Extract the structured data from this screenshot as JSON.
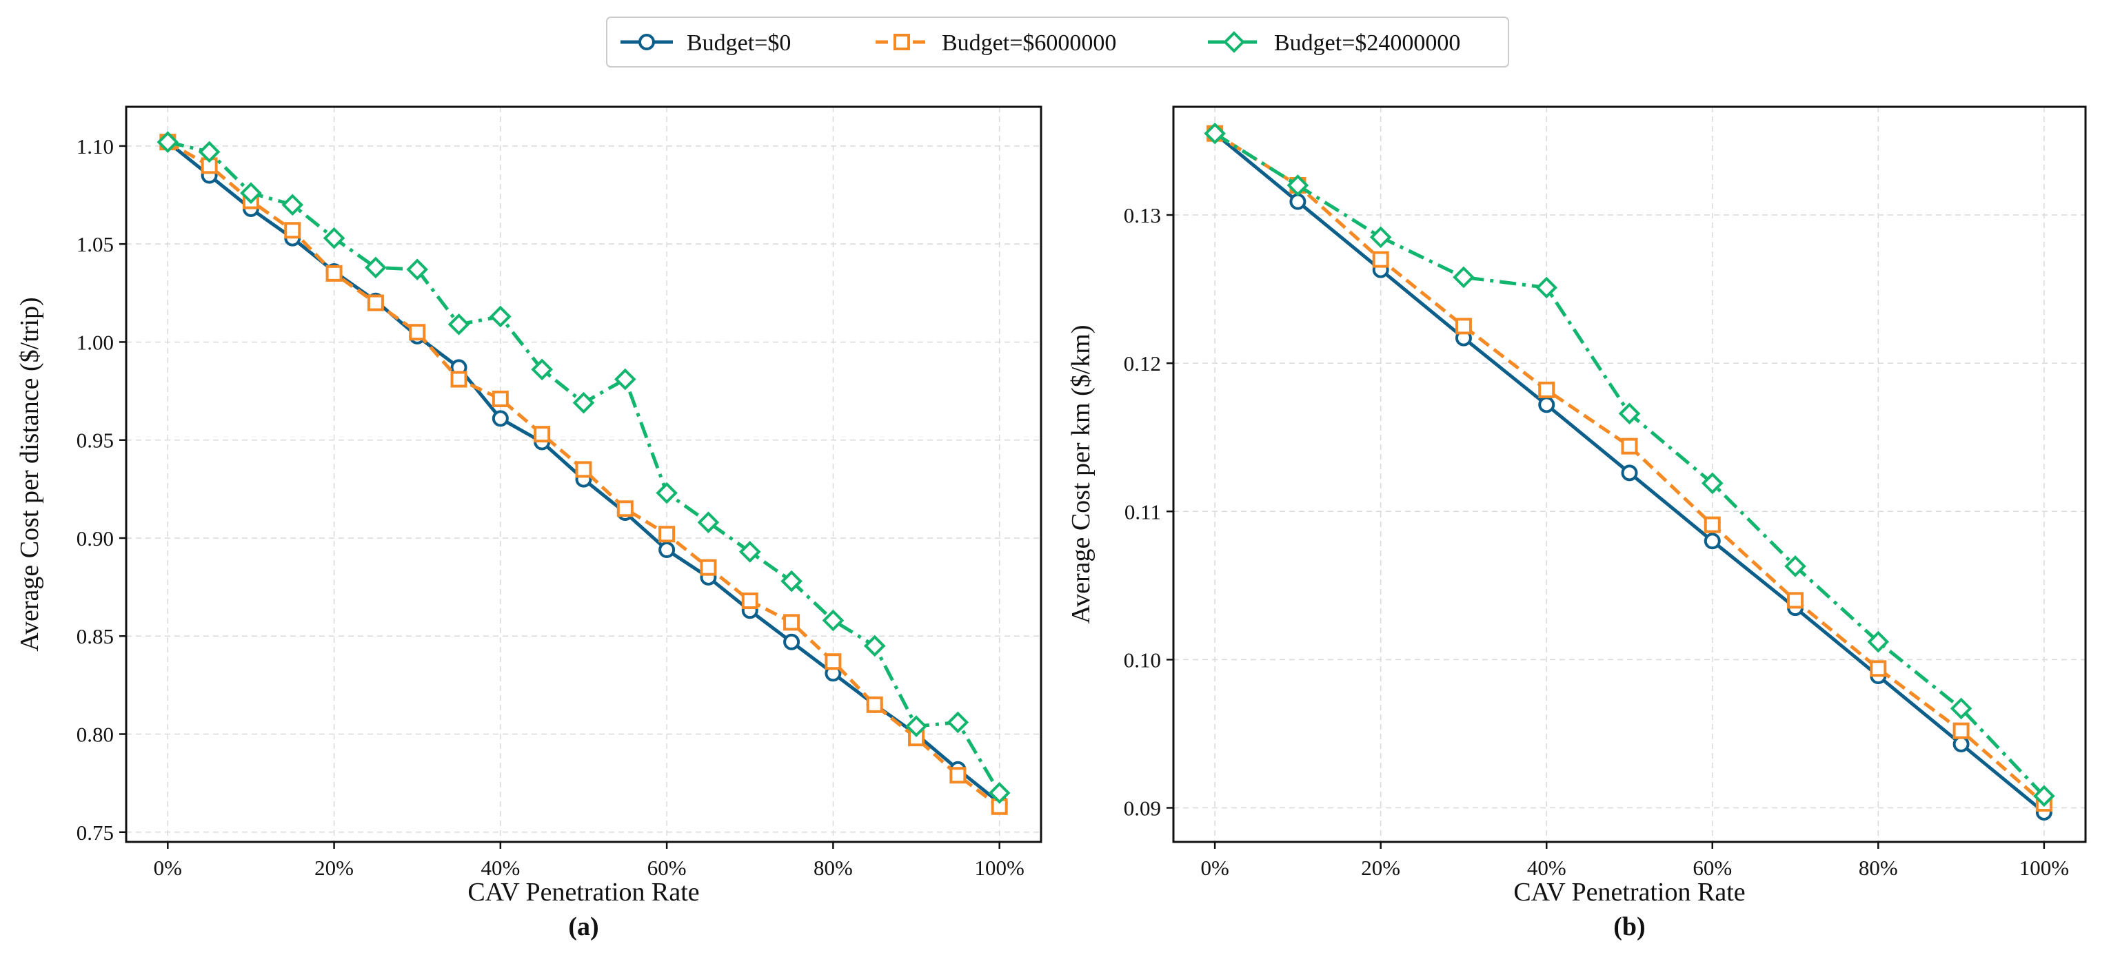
{
  "legend": {
    "entries": [
      {
        "name": "Budget=$0",
        "color": "#0b5f8a",
        "marker": "circle",
        "dash": "solid"
      },
      {
        "name": "Budget=$6000000",
        "color": "#f58a24",
        "marker": "square",
        "dash": "dashed"
      },
      {
        "name": "Budget=$24000000",
        "color": "#12b56e",
        "marker": "diamond",
        "dash": "dashdot"
      }
    ]
  },
  "chart_data": [
    {
      "type": "line",
      "panel_label": "(a)",
      "xlabel": "CAV Penetration Rate",
      "ylabel": "Average Cost per distance ($/trip)",
      "xlim": [
        -5,
        105
      ],
      "ylim": [
        0.745,
        1.12
      ],
      "grid": true,
      "x_ticks": [
        0,
        20,
        40,
        60,
        80,
        100
      ],
      "x_tick_labels": [
        "0%",
        "20%",
        "40%",
        "60%",
        "80%",
        "100%"
      ],
      "y_ticks": [
        0.75,
        0.8,
        0.85,
        0.9,
        0.95,
        1.0,
        1.05,
        1.1
      ],
      "y_tick_labels": [
        "0.75",
        "0.80",
        "0.85",
        "0.90",
        "0.95",
        "1.00",
        "1.05",
        "1.10"
      ],
      "x": [
        0,
        5,
        10,
        15,
        20,
        25,
        30,
        35,
        40,
        45,
        50,
        55,
        60,
        65,
        70,
        75,
        80,
        85,
        90,
        95,
        100
      ],
      "series": [
        {
          "name": "Budget=$0",
          "values": [
            1.102,
            1.085,
            1.068,
            1.053,
            1.036,
            1.021,
            1.003,
            0.987,
            0.961,
            0.949,
            0.93,
            0.913,
            0.894,
            0.88,
            0.863,
            0.847,
            0.831,
            0.815,
            0.8,
            0.782,
            0.765
          ]
        },
        {
          "name": "Budget=$6000000",
          "values": [
            1.102,
            1.09,
            1.072,
            1.057,
            1.035,
            1.02,
            1.005,
            0.981,
            0.971,
            0.953,
            0.935,
            0.915,
            0.902,
            0.885,
            0.868,
            0.857,
            0.837,
            0.815,
            0.798,
            0.779,
            0.763
          ]
        },
        {
          "name": "Budget=$24000000",
          "values": [
            1.102,
            1.097,
            1.076,
            1.07,
            1.053,
            1.038,
            1.037,
            1.009,
            1.013,
            0.986,
            0.969,
            0.981,
            0.923,
            0.908,
            0.893,
            0.878,
            0.858,
            0.845,
            0.804,
            0.806,
            0.77
          ]
        }
      ]
    },
    {
      "type": "line",
      "panel_label": "(b)",
      "xlabel": "CAV Penetration Rate",
      "ylabel": "Average Cost per km ($/km)",
      "xlim": [
        -5,
        105
      ],
      "ylim": [
        0.0877,
        0.1373
      ],
      "grid": true,
      "x_ticks": [
        0,
        20,
        40,
        60,
        80,
        100
      ],
      "x_tick_labels": [
        "0%",
        "20%",
        "40%",
        "60%",
        "80%",
        "100%"
      ],
      "y_ticks": [
        0.09,
        0.1,
        0.11,
        0.12,
        0.13
      ],
      "y_tick_labels": [
        "0.09",
        "0.10",
        "0.11",
        "0.12",
        "0.13"
      ],
      "x": [
        0,
        10,
        20,
        30,
        40,
        50,
        60,
        70,
        80,
        90,
        100
      ],
      "series": [
        {
          "name": "Budget=$0",
          "values": [
            0.1355,
            0.1309,
            0.1263,
            0.1217,
            0.1172,
            0.1126,
            0.108,
            0.1035,
            0.0989,
            0.0943,
            0.0897
          ]
        },
        {
          "name": "Budget=$6000000",
          "values": [
            0.1355,
            0.132,
            0.127,
            0.1225,
            0.1182,
            0.1144,
            0.1091,
            0.104,
            0.0994,
            0.0952,
            0.0903
          ]
        },
        {
          "name": "Budget=$24000000",
          "values": [
            0.1355,
            0.132,
            0.1285,
            0.1258,
            0.1251,
            0.1166,
            0.1119,
            0.1063,
            0.1012,
            0.0967,
            0.0908
          ]
        }
      ]
    }
  ]
}
